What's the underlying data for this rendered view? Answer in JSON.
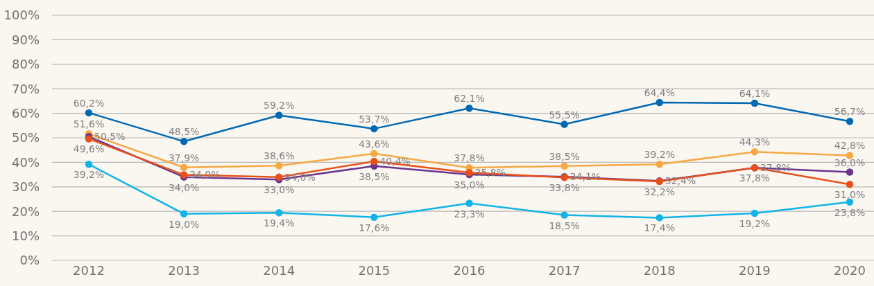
{
  "chart_data": {
    "type": "line",
    "categories": [
      "2012",
      "2013",
      "2014",
      "2015",
      "2016",
      "2017",
      "2018",
      "2019",
      "2020"
    ],
    "series": [
      {
        "color": "#0069b4",
        "values": [
          60.2,
          48.5,
          59.2,
          53.7,
          62.1,
          55.5,
          64.4,
          64.1,
          56.7
        ],
        "value_labels": [
          "60,2%",
          "48,5%",
          "59,2%",
          "53,7%",
          "62,1%",
          "55,5%",
          "64,4%",
          "64,1%",
          "56,7%"
        ]
      },
      {
        "color": "#f7a843",
        "values": [
          51.6,
          37.9,
          38.6,
          43.6,
          37.8,
          38.5,
          39.2,
          44.3,
          42.8
        ],
        "value_labels": [
          "51,6%",
          "37,9%",
          "38,6%",
          "43,6%",
          "37,8%",
          "38,5%",
          "39,2%",
          "44,3%",
          "42,8%"
        ]
      },
      {
        "color": "#6a3590",
        "values": [
          50.5,
          34.0,
          33.0,
          38.5,
          35.0,
          34.1,
          32.4,
          37.8,
          36.0
        ],
        "value_labels": [
          "50,5%",
          "34,0%",
          "33,0%",
          "38,5%",
          "35,0%",
          "34,1%",
          "32,4%",
          "37,8%",
          "36,0%"
        ]
      },
      {
        "color": "#e8501a",
        "values": [
          49.6,
          34.9,
          34.0,
          40.4,
          35.8,
          33.8,
          32.2,
          37.8,
          31.0
        ],
        "value_labels": [
          "49,6%",
          "34,9%",
          "34,0%",
          "40,4%",
          "35,8%",
          "33,8%",
          "32,2%",
          "37,8%",
          "31,0%"
        ]
      },
      {
        "color": "#12b4e8",
        "values": [
          39.2,
          19.0,
          19.4,
          17.6,
          23.3,
          18.5,
          17.4,
          19.2,
          23.8
        ],
        "value_labels": [
          "39,2%",
          "19,0%",
          "19,4%",
          "17,6%",
          "23,3%",
          "18,5%",
          "17,4%",
          "19,2%",
          "23,8%"
        ]
      }
    ],
    "ylim": [
      0,
      100
    ],
    "yticks": [
      {
        "value": 0,
        "label": "0%"
      },
      {
        "value": 10,
        "label": "10%"
      },
      {
        "value": 20,
        "label": "20%"
      },
      {
        "value": 30,
        "label": "30%"
      },
      {
        "value": 40,
        "label": "40%"
      },
      {
        "value": 50,
        "label": "50%"
      },
      {
        "value": 60,
        "label": "60%"
      },
      {
        "value": 70,
        "label": "70%"
      },
      {
        "value": 80,
        "label": "80%"
      },
      {
        "value": 90,
        "label": "90%"
      },
      {
        "value": 100,
        "label": "100%"
      }
    ],
    "grid": "y",
    "legend": false,
    "marker": "circle",
    "line_style": "solid"
  }
}
